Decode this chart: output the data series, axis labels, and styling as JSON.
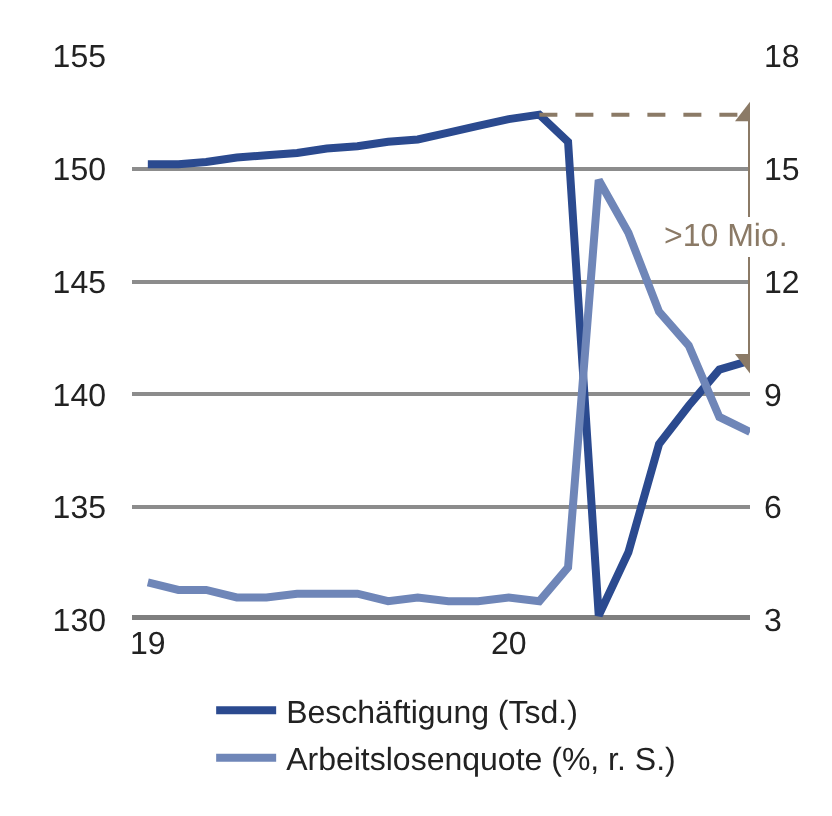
{
  "chart_data": {
    "type": "line",
    "x": [
      "2019-01",
      "2019-02",
      "2019-03",
      "2019-04",
      "2019-05",
      "2019-06",
      "2019-07",
      "2019-08",
      "2019-09",
      "2019-10",
      "2019-11",
      "2019-12",
      "2020-01",
      "2020-02",
      "2020-03",
      "2020-04",
      "2020-05",
      "2020-06",
      "2020-07",
      "2020-08",
      "2020-09"
    ],
    "series": [
      {
        "name": "Beschäftigung (Tsd.)",
        "color": "#2b4a8f",
        "values": [
          150.2,
          150.2,
          150.3,
          150.5,
          150.6,
          150.7,
          150.9,
          151.0,
          151.2,
          151.3,
          151.6,
          151.9,
          152.2,
          152.4,
          151.2,
          130.2,
          133.0,
          137.8,
          139.5,
          141.1,
          141.5
        ]
      },
      {
        "name": "Arbeitslosenquote (%, r. S.)",
        "color": "#6f86b8",
        "axis": "y2",
        "values": [
          4.0,
          3.8,
          3.8,
          3.6,
          3.6,
          3.7,
          3.7,
          3.7,
          3.5,
          3.6,
          3.5,
          3.5,
          3.6,
          3.5,
          4.4,
          14.7,
          13.3,
          11.2,
          10.3,
          8.4,
          8.0
        ]
      },
      {
        "color": "#8b7a66",
        "line_style": "dashed",
        "x": [
          "2020-02",
          "2020-09"
        ],
        "values": [
          152.4,
          152.4
        ]
      },
      {
        "color": "#8b7a66",
        "marker": "triangle",
        "x": [
          "2020-09",
          "2020-09"
        ],
        "values": [
          152.4,
          141.5
        ]
      }
    ],
    "annotations": [
      ">10 Mio."
    ],
    "xlim": [
      "2018-12-16",
      "2020-09"
    ],
    "xticks": [
      {
        "value": "2019-01",
        "label": "19"
      },
      {
        "value": "2020-01",
        "label": "20"
      }
    ],
    "ylim": [
      130,
      155
    ],
    "yticks": [
      130,
      135,
      140,
      145,
      150,
      155
    ],
    "y2lim": [
      3,
      18
    ],
    "y2ticks": [
      3,
      6,
      9,
      12,
      15,
      18
    ],
    "grid": "y",
    "legend": "bottom",
    "line_style": "solid"
  }
}
